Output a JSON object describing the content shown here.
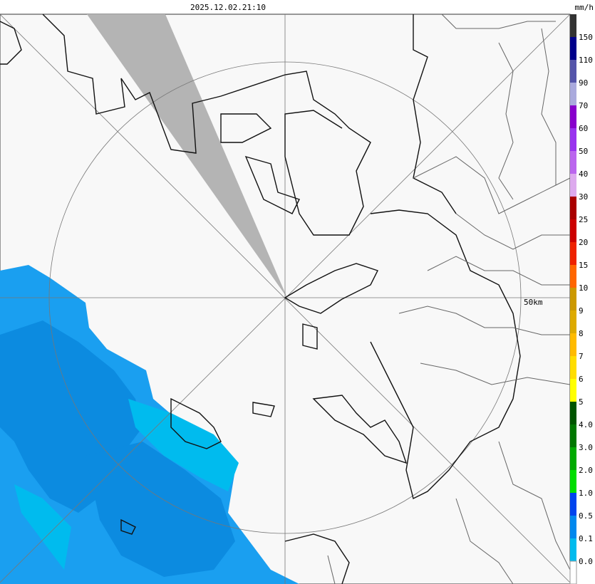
{
  "header": {
    "timestamp": "2025.12.02.21:10",
    "unit": "mm/h"
  },
  "map": {
    "range_label": "50km"
  },
  "legend": {
    "labels": [
      "150",
      "110",
      "90",
      "70",
      "60",
      "50",
      "40",
      "30",
      "25",
      "20",
      "15",
      "10",
      "9",
      "8",
      "7",
      "6",
      "5",
      "4.0",
      "3.0",
      "2.0",
      "1.0",
      "0.5",
      "0.1",
      "0.0"
    ],
    "colors": [
      "#333333",
      "#00008b",
      "#5555aa",
      "#aaaadd",
      "#8800cc",
      "#9933ee",
      "#bb66ee",
      "#ddaaee",
      "#aa0000",
      "#cc0000",
      "#ee2200",
      "#ff6600",
      "#cc9900",
      "#ddaa00",
      "#ffbb00",
      "#ffdd00",
      "#ffff00",
      "#005500",
      "#007700",
      "#00aa00",
      "#00dd00",
      "#0044ee",
      "#0088ee",
      "#00bbee",
      "#ffffff"
    ]
  }
}
